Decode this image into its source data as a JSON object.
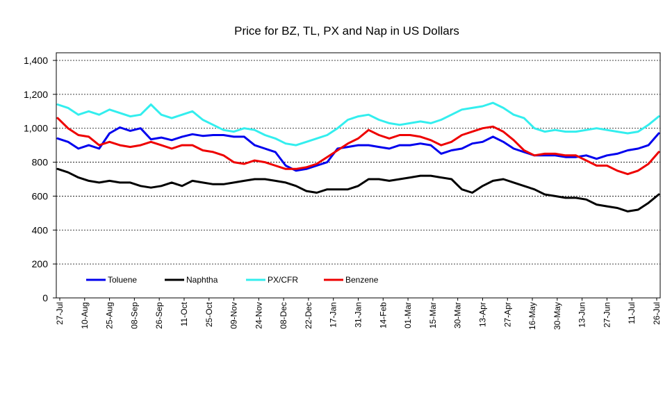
{
  "chart_data": {
    "type": "line",
    "title": "Price for BZ, TL, PX and Nap in US Dollars",
    "xlabel": "",
    "ylabel": "",
    "ylim": [
      0,
      1400
    ],
    "yticks": [
      0,
      200,
      400,
      600,
      800,
      1000,
      1200,
      1400
    ],
    "ytick_labels": [
      "0",
      "200",
      "400",
      "600",
      "800",
      "1,000",
      "1,200",
      "1,400"
    ],
    "x_tick_labels": [
      "27-Jul",
      "10-Aug",
      "25-Aug",
      "08-Sep",
      "26-Sep",
      "11-Oct",
      "25-Oct",
      "09-Nov",
      "24-Nov",
      "08-Dec",
      "22-Dec",
      "17-Jan",
      "31-Jan",
      "14-Feb",
      "01-Mar",
      "15-Mar",
      "30-Mar",
      "13-Apr",
      "27-Apr",
      "16-May",
      "30-May",
      "13-Jun",
      "27-Jun",
      "11-Jul",
      "26-Jul"
    ],
    "grid": "horizontal",
    "legend_position": "bottom-left",
    "series": [
      {
        "name": "Toluene",
        "color": "#0000ee",
        "values": [
          940,
          920,
          880,
          900,
          880,
          970,
          1005,
          985,
          1000,
          935,
          945,
          930,
          950,
          965,
          955,
          960,
          960,
          950,
          950,
          900,
          880,
          860,
          780,
          750,
          760,
          780,
          800,
          880,
          890,
          900,
          900,
          890,
          880,
          900,
          900,
          910,
          900,
          850,
          870,
          880,
          910,
          920,
          950,
          920,
          880,
          860,
          840,
          840,
          840,
          830,
          830,
          840,
          820,
          840,
          850,
          870,
          880,
          900,
          970
        ]
      },
      {
        "name": "Naphtha",
        "color": "#000000",
        "values": [
          760,
          740,
          710,
          690,
          680,
          690,
          680,
          680,
          660,
          650,
          660,
          680,
          660,
          690,
          680,
          670,
          670,
          680,
          690,
          700,
          700,
          690,
          680,
          660,
          630,
          620,
          640,
          640,
          640,
          660,
          700,
          700,
          690,
          700,
          710,
          720,
          720,
          710,
          700,
          640,
          620,
          660,
          690,
          700,
          680,
          660,
          640,
          610,
          600,
          590,
          590,
          580,
          550,
          540,
          530,
          510,
          520,
          560,
          610
        ]
      },
      {
        "name": "PX/CFR",
        "color": "#33eeee",
        "values": [
          1140,
          1120,
          1080,
          1100,
          1080,
          1110,
          1090,
          1070,
          1080,
          1140,
          1080,
          1060,
          1080,
          1100,
          1050,
          1020,
          990,
          980,
          1000,
          990,
          960,
          940,
          910,
          900,
          920,
          940,
          960,
          1000,
          1050,
          1070,
          1080,
          1050,
          1030,
          1020,
          1030,
          1040,
          1030,
          1050,
          1080,
          1110,
          1120,
          1130,
          1150,
          1120,
          1080,
          1060,
          1000,
          980,
          990,
          980,
          980,
          990,
          1000,
          990,
          980,
          970,
          980,
          1020,
          1070
        ]
      },
      {
        "name": "Benzene",
        "color": "#ee0000",
        "values": [
          1060,
          1000,
          960,
          950,
          900,
          920,
          900,
          890,
          900,
          920,
          900,
          880,
          900,
          900,
          870,
          860,
          840,
          800,
          790,
          810,
          800,
          780,
          760,
          760,
          770,
          790,
          830,
          870,
          910,
          940,
          990,
          960,
          940,
          960,
          960,
          950,
          930,
          900,
          920,
          960,
          980,
          1000,
          1010,
          980,
          930,
          870,
          840,
          850,
          850,
          840,
          840,
          810,
          780,
          780,
          750,
          730,
          750,
          790,
          860
        ]
      }
    ]
  }
}
